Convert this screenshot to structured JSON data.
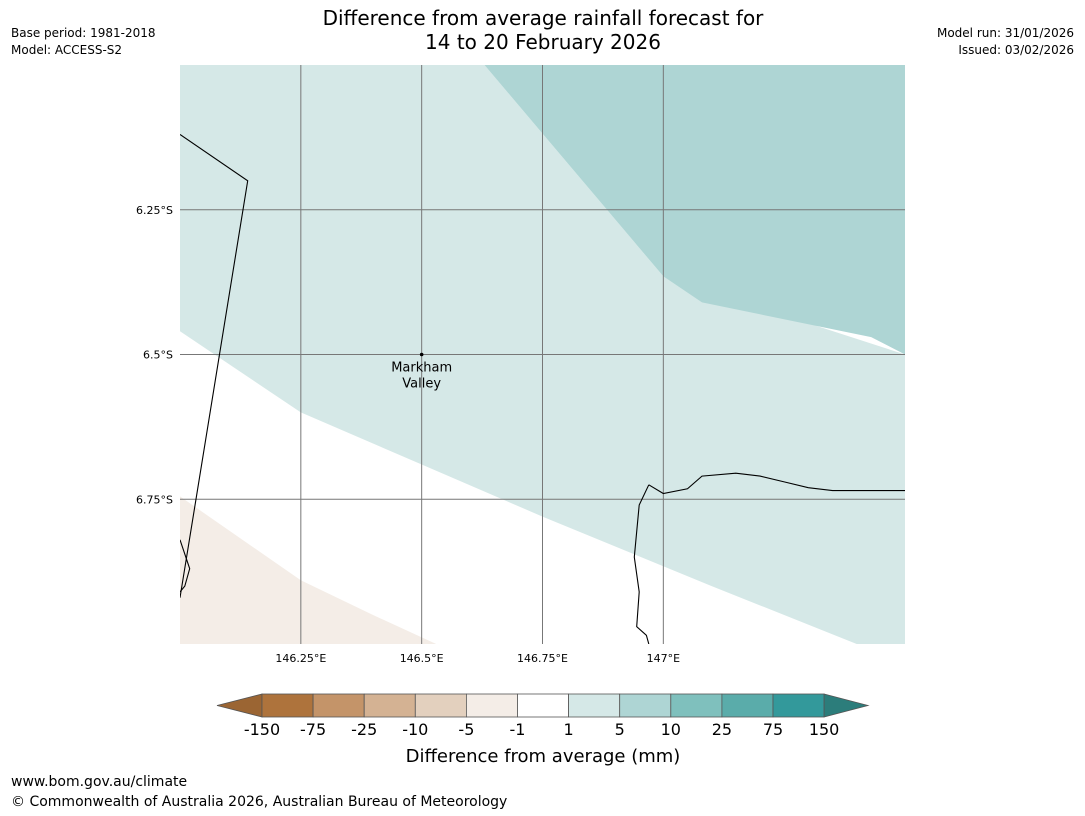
{
  "header": {
    "title_line1": "Difference from average rainfall forecast for",
    "title_line2": "14 to 20 February 2026",
    "base_period": "Base period: 1981-2018",
    "model": "Model: ACCESS-S2",
    "model_run": "Model run: 31/01/2026",
    "issued": "Issued: 03/02/2026"
  },
  "map": {
    "extent": {
      "lon": [
        146.0,
        147.5
      ],
      "lat": [
        -6.0,
        -7.0
      ]
    },
    "lat_ticks": [
      {
        "value": -6.25,
        "label": "6.25°S"
      },
      {
        "value": -6.5,
        "label": "6.5°S"
      },
      {
        "value": -6.75,
        "label": "6.75°S"
      }
    ],
    "lon_ticks": [
      {
        "value": 146.25,
        "label": "146.25°E"
      },
      {
        "value": 146.5,
        "label": "146.5°E"
      },
      {
        "value": 146.75,
        "label": "146.75°E"
      },
      {
        "value": 147.0,
        "label": "147°E"
      }
    ],
    "location": {
      "name_line1": "Markham",
      "name_line2": "Valley",
      "lon": 146.5,
      "lat": -6.5
    },
    "regions": [
      {
        "category": "1 to 5",
        "color": "#d5e8e7",
        "points": [
          [
            146.0,
            -6.0
          ],
          [
            146.63,
            -6.0
          ],
          [
            147.0,
            -6.365
          ],
          [
            147.5,
            -6.5
          ],
          [
            147.5,
            -7.0
          ],
          [
            147.4,
            -7.0
          ],
          [
            147.1,
            -6.9
          ],
          [
            146.75,
            -6.78
          ],
          [
            146.5,
            -6.69
          ],
          [
            146.25,
            -6.6
          ],
          [
            146.0,
            -6.46
          ]
        ]
      },
      {
        "category": "5 to 10",
        "color": "#aed5d4",
        "points": [
          [
            146.63,
            -6.0
          ],
          [
            147.5,
            -6.0
          ],
          [
            147.5,
            -6.5
          ],
          [
            147.43,
            -6.47
          ],
          [
            147.08,
            -6.41
          ],
          [
            147.0,
            -6.365
          ]
        ]
      },
      {
        "category": "-5 to -1",
        "color": "#f4ede7",
        "points": [
          [
            146.0,
            -6.745
          ],
          [
            146.25,
            -6.89
          ],
          [
            146.4,
            -6.95
          ],
          [
            146.53,
            -7.0
          ],
          [
            146.0,
            -7.0
          ]
        ]
      }
    ],
    "coastlines": [
      {
        "name": "border",
        "points": [
          [
            146.0,
            -6.12
          ],
          [
            146.14,
            -6.2
          ],
          [
            146.0,
            -6.92
          ]
        ]
      },
      {
        "name": "east-coast",
        "points": [
          [
            146.97,
            -6.725
          ],
          [
            147.0,
            -6.74
          ],
          [
            147.05,
            -6.732
          ],
          [
            147.08,
            -6.71
          ],
          [
            147.15,
            -6.705
          ],
          [
            147.2,
            -6.71
          ],
          [
            147.25,
            -6.72
          ],
          [
            147.3,
            -6.73
          ],
          [
            147.35,
            -6.735
          ],
          [
            147.4,
            -6.735
          ],
          [
            147.5,
            -6.735
          ]
        ]
      },
      {
        "name": "river",
        "points": [
          [
            146.97,
            -6.725
          ],
          [
            146.95,
            -6.76
          ],
          [
            146.94,
            -6.85
          ],
          [
            146.95,
            -6.91
          ],
          [
            146.945,
            -6.97
          ],
          [
            146.965,
            -6.985
          ],
          [
            146.97,
            -7.0
          ]
        ]
      },
      {
        "name": "west-coast",
        "points": [
          [
            146.0,
            -6.82
          ],
          [
            146.02,
            -6.87
          ],
          [
            146.01,
            -6.9
          ],
          [
            146.0,
            -6.91
          ]
        ]
      }
    ]
  },
  "colorbar": {
    "title": "Difference from average (mm)",
    "labels": [
      "-150",
      "-75",
      "-25",
      "-10",
      "-5",
      "-1",
      "1",
      "5",
      "10",
      "25",
      "75",
      "150"
    ],
    "colors": [
      "#ae733c",
      "#c49469",
      "#d4b293",
      "#e3d0be",
      "#f4ede7",
      "#ffffff",
      "#d5e8e7",
      "#aed5d4",
      "#7fc0bd",
      "#5aacaa",
      "#33999b"
    ],
    "extend_low_color": "#9b6533",
    "extend_high_color": "#2c7d7b"
  },
  "footer": {
    "url": "www.bom.gov.au/climate",
    "copyright": "© Commonwealth of Australia 2026, Australian Bureau of Meteorology"
  }
}
